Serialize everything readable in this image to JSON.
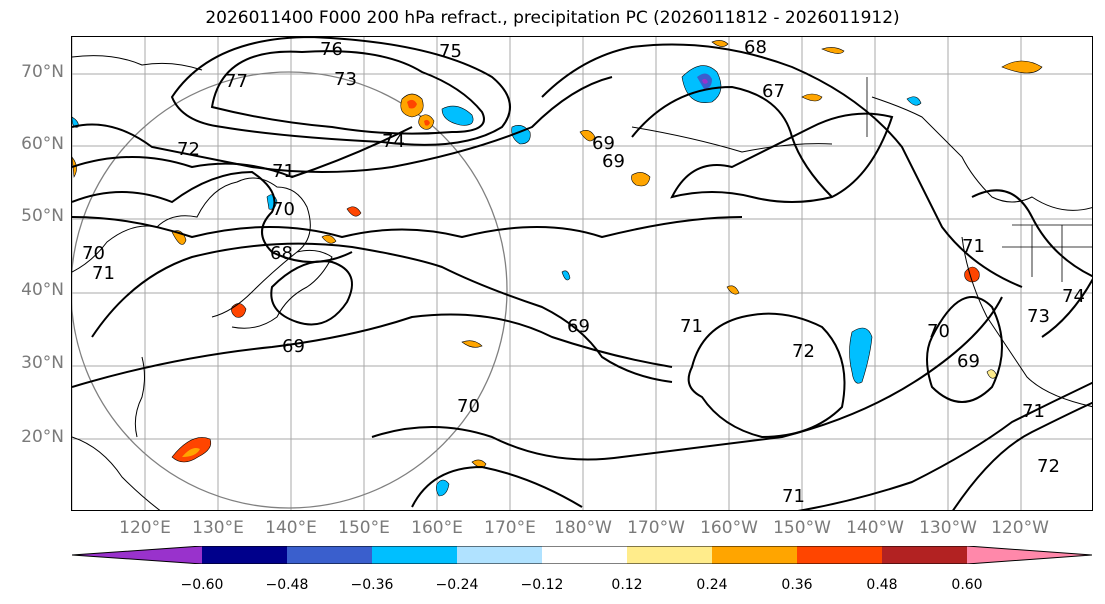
{
  "title": "2026011400 F000 200 hPa refract., precipitation PC (2026011812 - 2026011912)",
  "lat_labels": [
    "70°N",
    "60°N",
    "50°N",
    "40°N",
    "30°N",
    "20°N"
  ],
  "lon_labels": [
    "120°E",
    "130°E",
    "140°E",
    "150°E",
    "160°E",
    "170°E",
    "180°W",
    "170°W",
    "160°W",
    "150°W",
    "140°W",
    "130°W",
    "120°W"
  ],
  "contour_labels": [
    "76",
    "75",
    "77",
    "68",
    "67",
    "73",
    "72",
    "71",
    "74",
    "70",
    "69",
    "71",
    "68",
    "69",
    "69",
    "70",
    "71",
    "72",
    "70",
    "69",
    "73",
    "72",
    "71",
    "71",
    "74",
    "71",
    "70",
    "69"
  ],
  "colorbar": {
    "labels": [
      "−0.60",
      "−0.48",
      "−0.36",
      "−0.24",
      "−0.12",
      "0.12",
      "0.24",
      "0.36",
      "0.48",
      "0.60"
    ],
    "colors": [
      "#9932cc",
      "#00008b",
      "#3a5fcd",
      "#00bfff",
      "#b0e2ff",
      "#ffffff",
      "#ffec8b",
      "#ffa500",
      "#ff4500",
      "#b22222",
      "#ff88aa"
    ]
  },
  "shading_colors": {
    "pos_light": "#ffec8b",
    "pos_mid": "#ffa500",
    "pos_high": "#ff4500",
    "pos_max": "#b22222",
    "neg_light": "#b0e2ff",
    "neg_mid": "#00bfff",
    "neg_high": "#3a5fcd"
  }
}
